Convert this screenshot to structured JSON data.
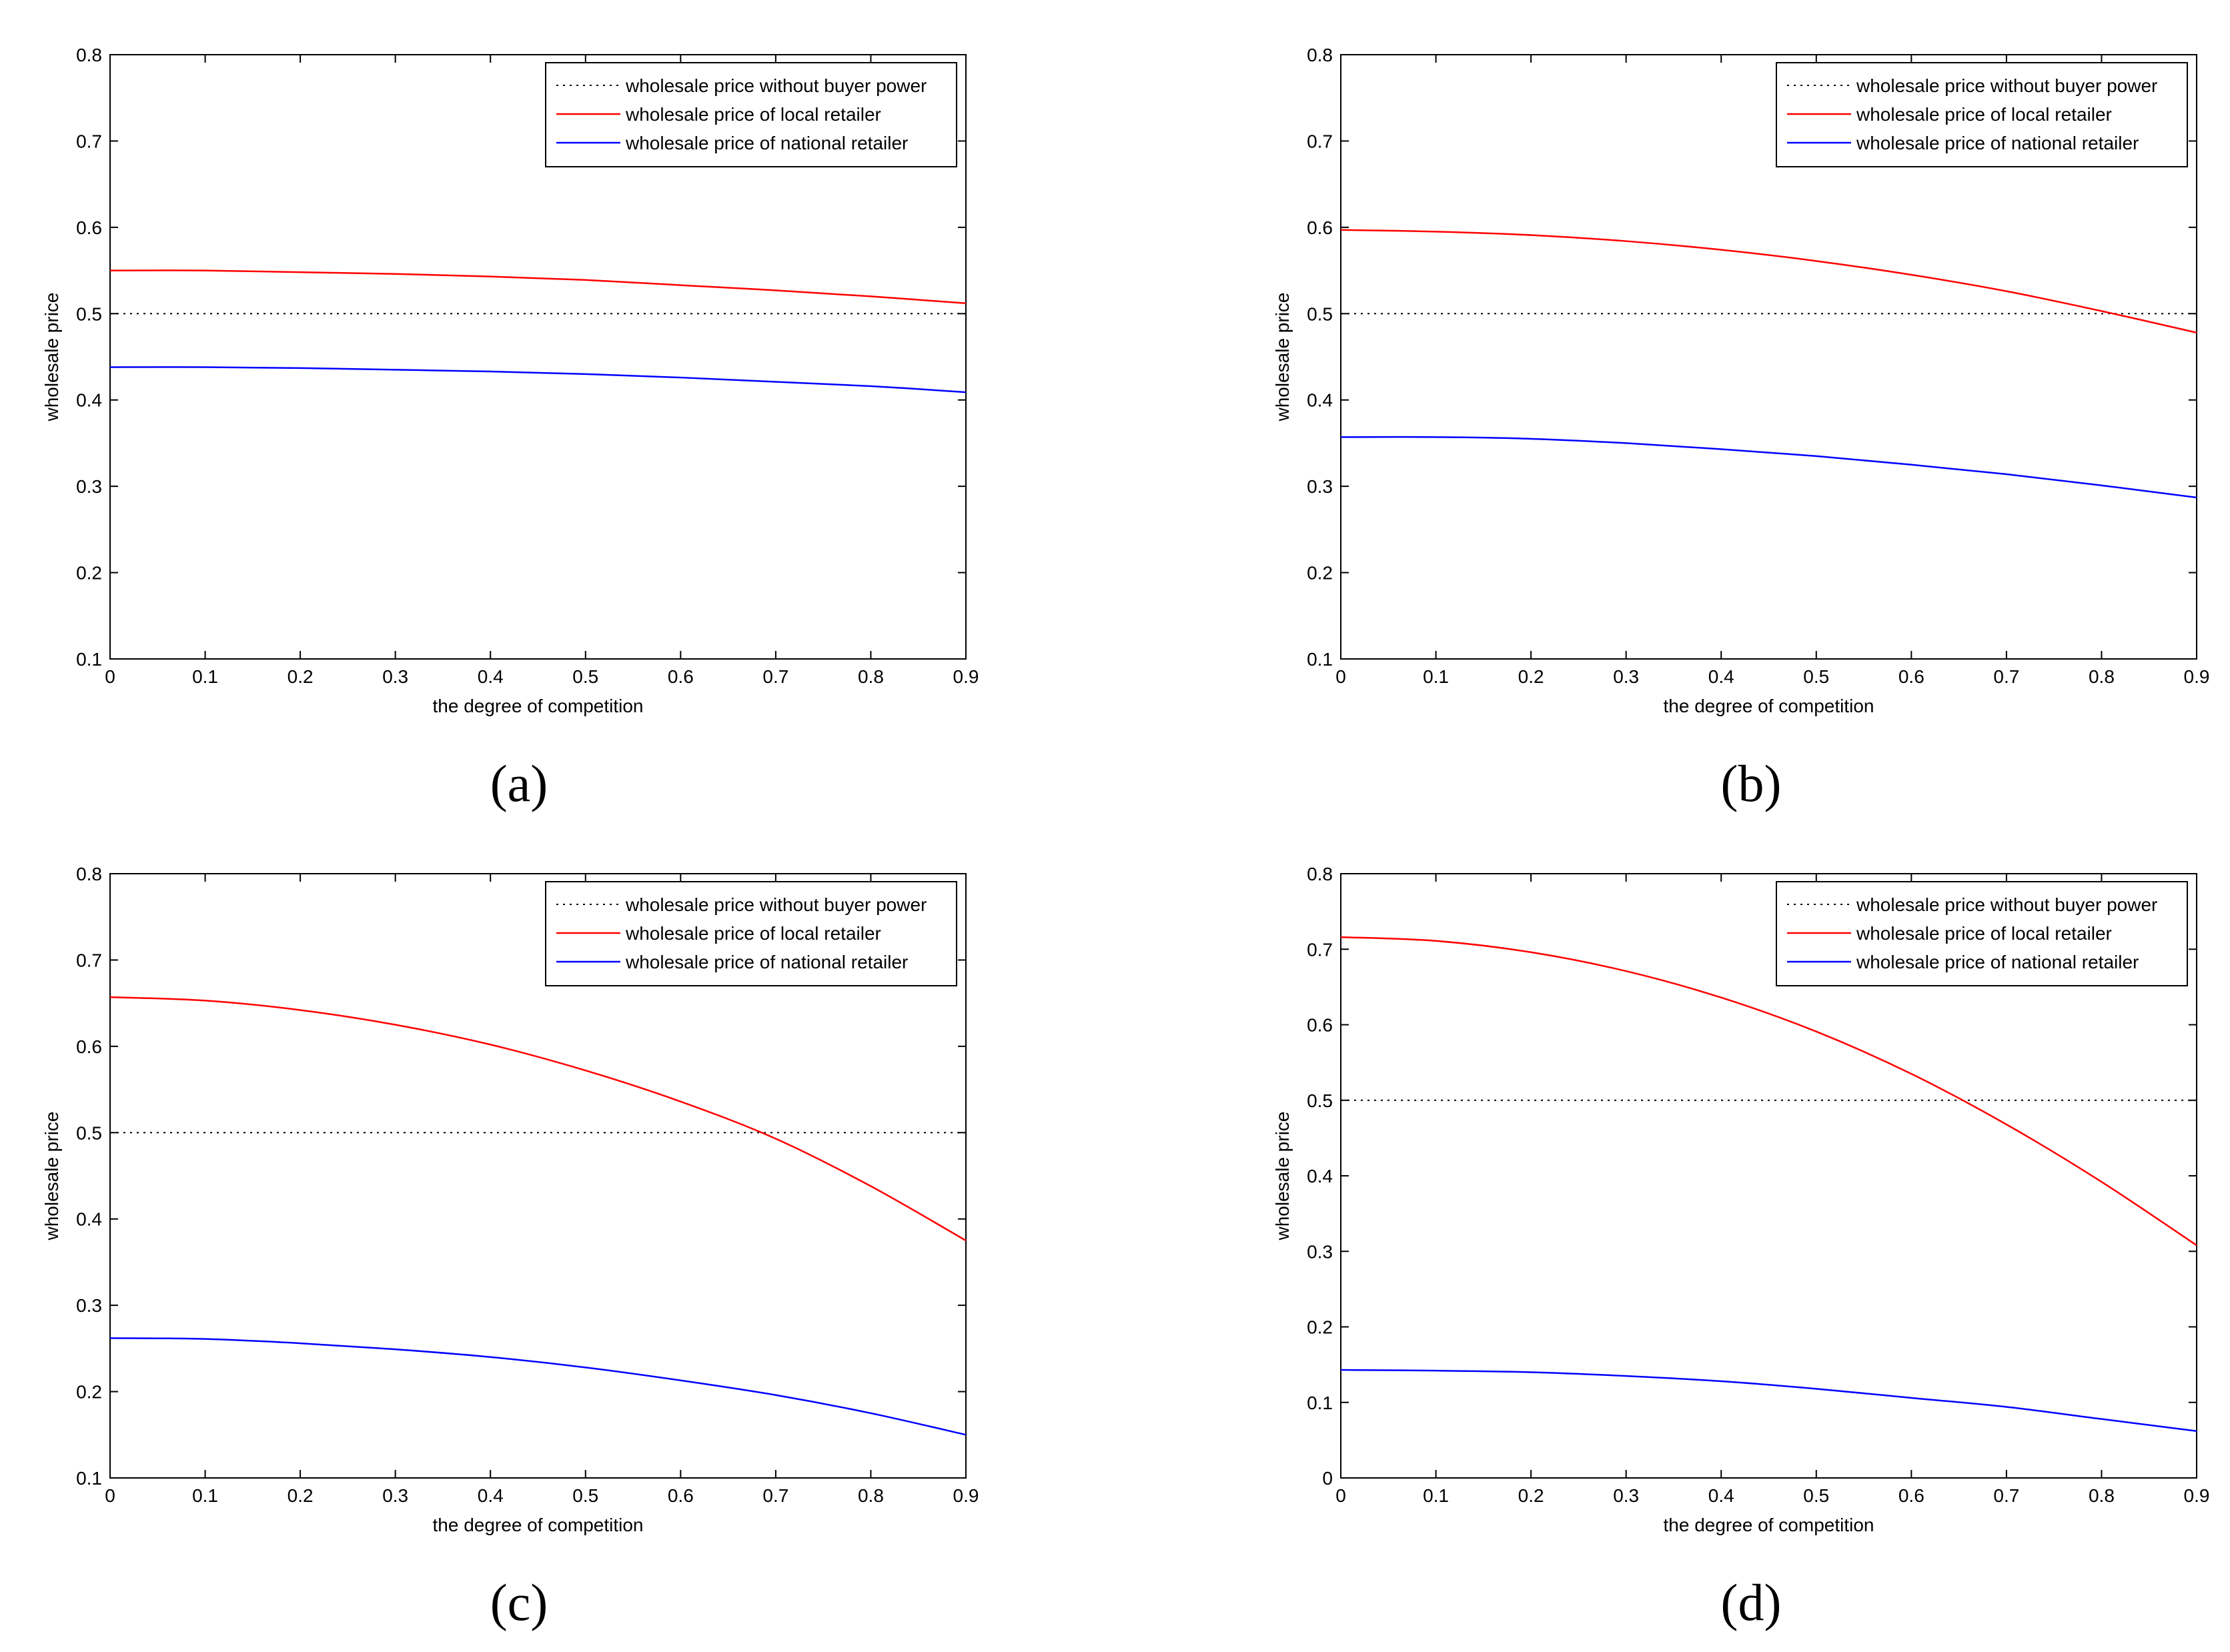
{
  "chart_data": [
    {
      "panel": "a",
      "type": "line",
      "xlabel": "the degree of competition",
      "ylabel": "wholesale price",
      "xlim": [
        0,
        0.9
      ],
      "ylim": [
        0.1,
        0.8
      ],
      "xticks": [
        "0",
        "0.1",
        "0.2",
        "0.3",
        "0.4",
        "0.5",
        "0.6",
        "0.7",
        "0.8",
        "0.9"
      ],
      "yticks": [
        "0.1",
        "0.2",
        "0.3",
        "0.4",
        "0.5",
        "0.6",
        "0.7",
        "0.8"
      ],
      "legend_position": "top-right",
      "x": [
        0,
        0.1,
        0.2,
        0.3,
        0.4,
        0.5,
        0.6,
        0.7,
        0.8,
        0.9
      ],
      "series": [
        {
          "name": "wholesale price without buyer power",
          "color": "#000000",
          "style": "dotted",
          "values": [
            0.5,
            0.5,
            0.5,
            0.5,
            0.5,
            0.5,
            0.5,
            0.5,
            0.5,
            0.5
          ]
        },
        {
          "name": "wholesale price of local retailer",
          "color": "#ff0000",
          "style": "solid",
          "values": [
            0.55,
            0.55,
            0.548,
            0.546,
            0.543,
            0.539,
            0.533,
            0.527,
            0.52,
            0.512
          ]
        },
        {
          "name": "wholesale price of national retailer",
          "color": "#0000ff",
          "style": "solid",
          "values": [
            0.438,
            0.438,
            0.437,
            0.435,
            0.433,
            0.43,
            0.426,
            0.421,
            0.416,
            0.409
          ]
        }
      ]
    },
    {
      "panel": "b",
      "type": "line",
      "xlabel": "the degree of competition",
      "ylabel": "wholesale price",
      "xlim": [
        0,
        0.9
      ],
      "ylim": [
        0.1,
        0.8
      ],
      "xticks": [
        "0",
        "0.1",
        "0.2",
        "0.3",
        "0.4",
        "0.5",
        "0.6",
        "0.7",
        "0.8",
        "0.9"
      ],
      "yticks": [
        "0.1",
        "0.2",
        "0.3",
        "0.4",
        "0.5",
        "0.6",
        "0.7",
        "0.8"
      ],
      "legend_position": "top-right",
      "x": [
        0,
        0.1,
        0.2,
        0.3,
        0.4,
        0.5,
        0.6,
        0.7,
        0.8,
        0.9
      ],
      "series": [
        {
          "name": "wholesale price without buyer power",
          "color": "#000000",
          "style": "dotted",
          "values": [
            0.5,
            0.5,
            0.5,
            0.5,
            0.5,
            0.5,
            0.5,
            0.5,
            0.5,
            0.5
          ]
        },
        {
          "name": "wholesale price of local retailer",
          "color": "#ff0000",
          "style": "solid",
          "values": [
            0.597,
            0.595,
            0.591,
            0.584,
            0.574,
            0.561,
            0.545,
            0.526,
            0.503,
            0.478
          ]
        },
        {
          "name": "wholesale price of national retailer",
          "color": "#0000ff",
          "style": "solid",
          "values": [
            0.357,
            0.357,
            0.355,
            0.35,
            0.343,
            0.335,
            0.325,
            0.314,
            0.301,
            0.287
          ]
        }
      ]
    },
    {
      "panel": "c",
      "type": "line",
      "xlabel": "the degree of competition",
      "ylabel": "wholesale price",
      "xlim": [
        0,
        0.9
      ],
      "ylim": [
        0.1,
        0.8
      ],
      "xticks": [
        "0",
        "0.1",
        "0.2",
        "0.3",
        "0.4",
        "0.5",
        "0.6",
        "0.7",
        "0.8",
        "0.9"
      ],
      "yticks": [
        "0.1",
        "0.2",
        "0.3",
        "0.4",
        "0.5",
        "0.6",
        "0.7",
        "0.8"
      ],
      "legend_position": "top-right",
      "x": [
        0,
        0.1,
        0.2,
        0.3,
        0.4,
        0.5,
        0.6,
        0.7,
        0.8,
        0.9
      ],
      "series": [
        {
          "name": "wholesale price without buyer power",
          "color": "#000000",
          "style": "dotted",
          "values": [
            0.5,
            0.5,
            0.5,
            0.5,
            0.5,
            0.5,
            0.5,
            0.5,
            0.5,
            0.5
          ]
        },
        {
          "name": "wholesale price of local retailer",
          "color": "#ff0000",
          "style": "solid",
          "values": [
            0.657,
            0.653,
            0.642,
            0.625,
            0.602,
            0.572,
            0.536,
            0.493,
            0.438,
            0.375
          ]
        },
        {
          "name": "wholesale price of national retailer",
          "color": "#0000ff",
          "style": "solid",
          "values": [
            0.262,
            0.261,
            0.256,
            0.249,
            0.24,
            0.228,
            0.213,
            0.196,
            0.175,
            0.15
          ]
        }
      ]
    },
    {
      "panel": "d",
      "type": "line",
      "xlabel": "the degree of competition",
      "ylabel": "wholesale price",
      "xlim": [
        0,
        0.9
      ],
      "ylim": [
        0,
        0.8
      ],
      "xticks": [
        "0",
        "0.1",
        "0.2",
        "0.3",
        "0.4",
        "0.5",
        "0.6",
        "0.7",
        "0.8",
        "0.9"
      ],
      "yticks": [
        "0",
        "0.1",
        "0.2",
        "0.3",
        "0.4",
        "0.5",
        "0.6",
        "0.7",
        "0.8"
      ],
      "legend_position": "top-right",
      "x": [
        0,
        0.1,
        0.2,
        0.3,
        0.4,
        0.5,
        0.6,
        0.7,
        0.8,
        0.9
      ],
      "series": [
        {
          "name": "wholesale price without buyer power",
          "color": "#000000",
          "style": "dotted",
          "values": [
            0.5,
            0.5,
            0.5,
            0.5,
            0.5,
            0.5,
            0.5,
            0.5,
            0.5,
            0.5
          ]
        },
        {
          "name": "wholesale price of local retailer",
          "color": "#ff0000",
          "style": "solid",
          "values": [
            0.716,
            0.711,
            0.696,
            0.671,
            0.636,
            0.591,
            0.535,
            0.468,
            0.392,
            0.308
          ]
        },
        {
          "name": "wholesale price of national retailer",
          "color": "#0000ff",
          "style": "solid",
          "values": [
            0.143,
            0.142,
            0.14,
            0.135,
            0.128,
            0.118,
            0.106,
            0.094,
            0.078,
            0.062
          ]
        }
      ]
    }
  ],
  "captions": {
    "a": "(a)",
    "b": "(b)",
    "c": "(c)",
    "d": "(d)"
  }
}
